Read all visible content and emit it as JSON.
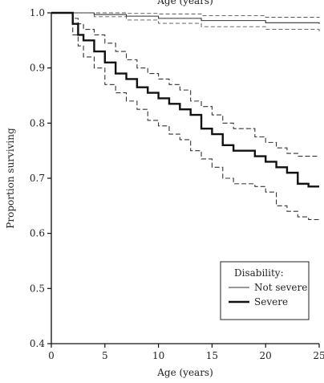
{
  "chart_data": {
    "type": "line",
    "title": "",
    "top_caption": "Age (years)",
    "xlabel": "Age (years)",
    "ylabel": "Proportion surviving",
    "xlim": [
      0,
      25
    ],
    "ylim": [
      0.4,
      1.0
    ],
    "x_ticks": [
      "0",
      "5",
      "10",
      "15",
      "20",
      "25"
    ],
    "y_ticks": [
      "0.4",
      "0.5",
      "0.6",
      "0.7",
      "0.8",
      "0.9",
      "1.0"
    ],
    "grid": false,
    "legend": {
      "title": "Disability:",
      "placement": "lower-right"
    },
    "series": [
      {
        "name": "Not severe",
        "step": true,
        "x": [
          0,
          2,
          4,
          7,
          10,
          14,
          20,
          25
        ],
        "y": [
          1.0,
          1.0,
          0.997,
          0.994,
          0.99,
          0.986,
          0.982,
          0.98
        ],
        "ci_lower": [
          1.0,
          1.0,
          0.993,
          0.987,
          0.981,
          0.975,
          0.97,
          0.966
        ],
        "ci_upper": [
          1.0,
          1.0,
          1.0,
          0.999,
          0.998,
          0.995,
          0.992,
          0.991
        ]
      },
      {
        "name": "Severe",
        "step": true,
        "x": [
          0,
          2,
          2.5,
          3,
          4,
          5,
          6,
          7,
          8,
          9,
          10,
          11,
          12,
          13,
          14,
          15,
          16,
          17,
          19,
          20,
          21,
          22,
          23,
          24,
          25
        ],
        "y": [
          1.0,
          0.98,
          0.96,
          0.95,
          0.93,
          0.91,
          0.89,
          0.88,
          0.865,
          0.855,
          0.845,
          0.835,
          0.825,
          0.815,
          0.79,
          0.78,
          0.76,
          0.75,
          0.74,
          0.73,
          0.72,
          0.71,
          0.69,
          0.685,
          0.685
        ],
        "ci_lower": [
          1.0,
          0.96,
          0.94,
          0.92,
          0.9,
          0.87,
          0.855,
          0.84,
          0.825,
          0.805,
          0.795,
          0.78,
          0.77,
          0.75,
          0.735,
          0.72,
          0.7,
          0.69,
          0.685,
          0.675,
          0.65,
          0.64,
          0.63,
          0.625,
          0.625
        ],
        "ci_upper": [
          1.0,
          0.99,
          0.98,
          0.97,
          0.96,
          0.945,
          0.93,
          0.915,
          0.9,
          0.89,
          0.88,
          0.87,
          0.86,
          0.84,
          0.83,
          0.815,
          0.8,
          0.79,
          0.775,
          0.765,
          0.755,
          0.745,
          0.74,
          0.74,
          0.74
        ]
      }
    ]
  }
}
